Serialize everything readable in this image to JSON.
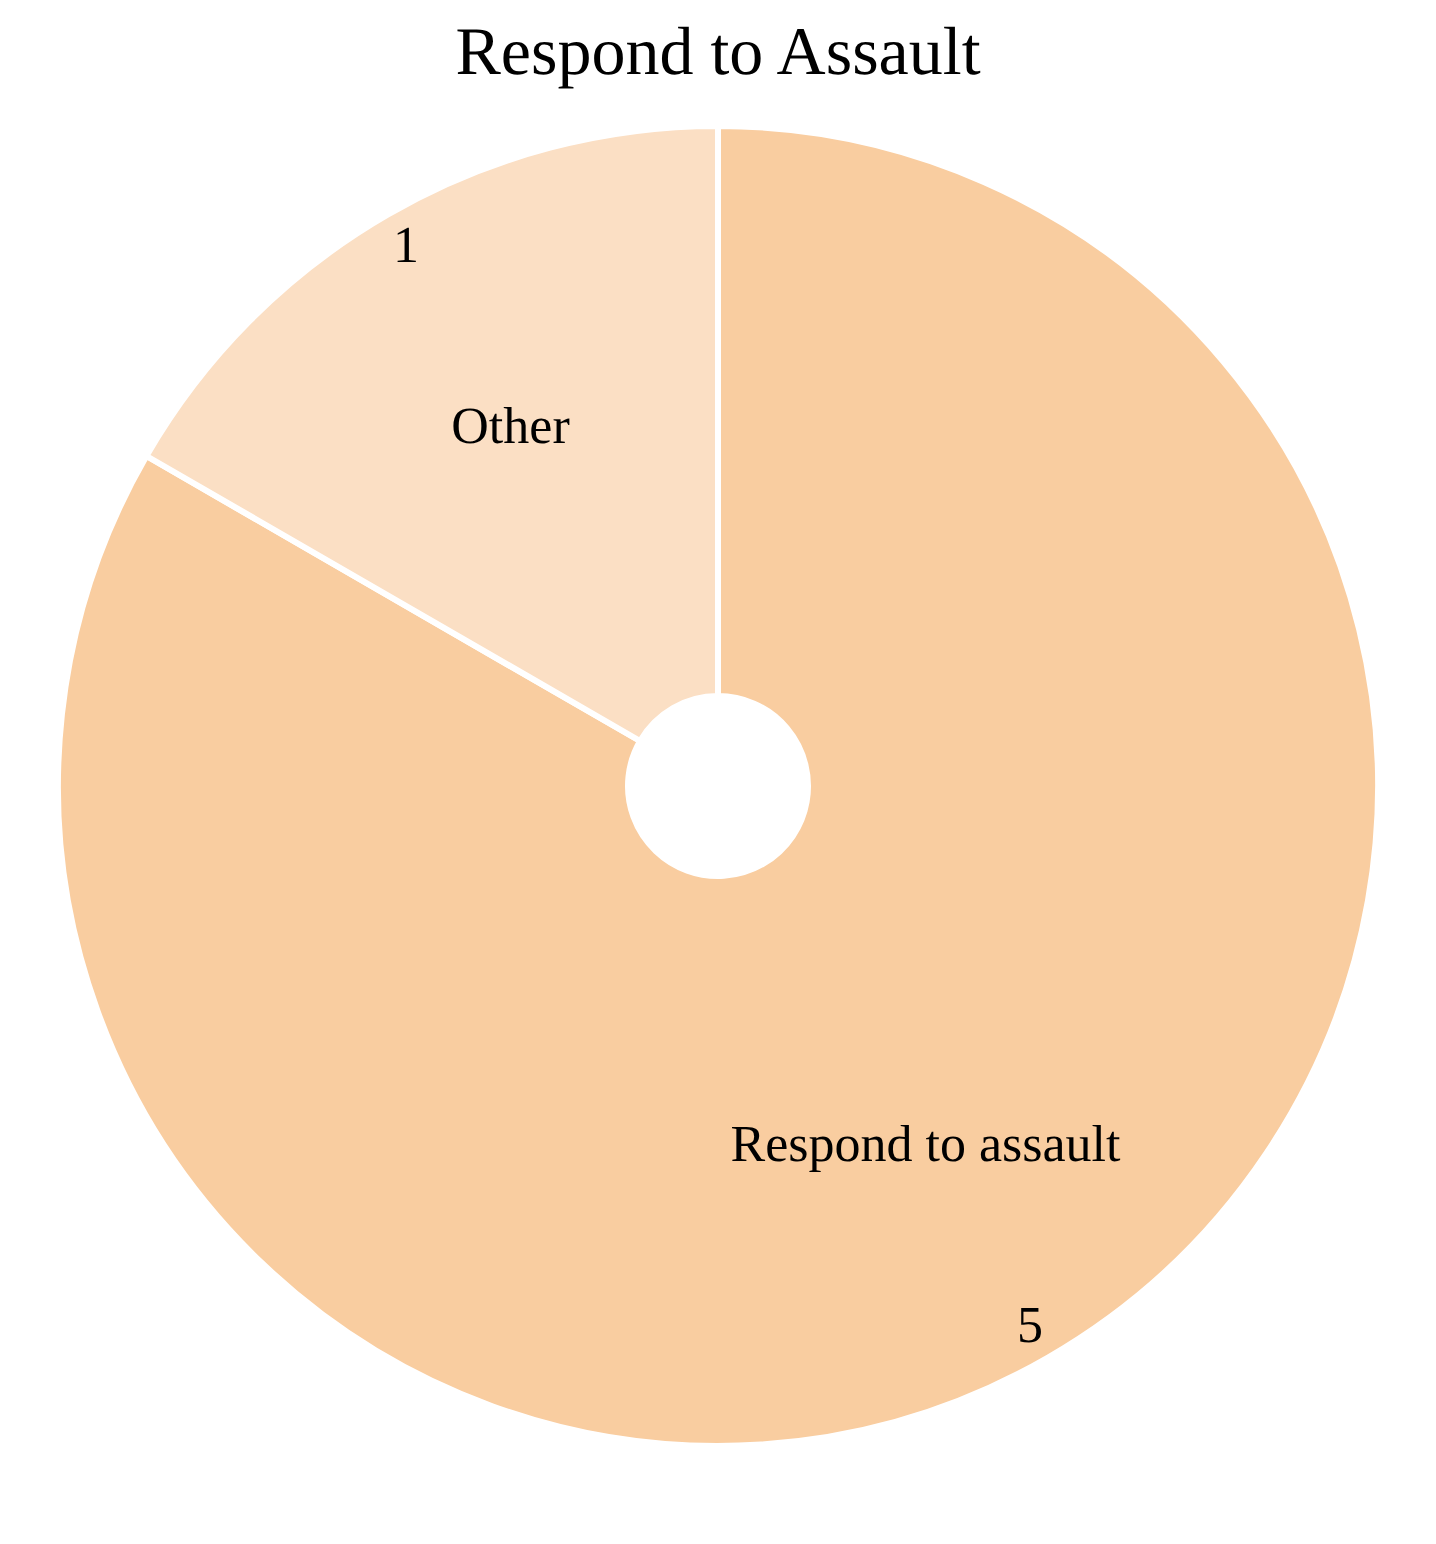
{
  "chart_data": {
    "type": "donut",
    "title": "Respond to Assault",
    "categories": [
      "Respond to assault",
      "Other"
    ],
    "values": [
      5,
      1
    ],
    "colors": [
      "#f9cda0",
      "#fbdfc4"
    ],
    "data_labels": true,
    "legend": false
  }
}
